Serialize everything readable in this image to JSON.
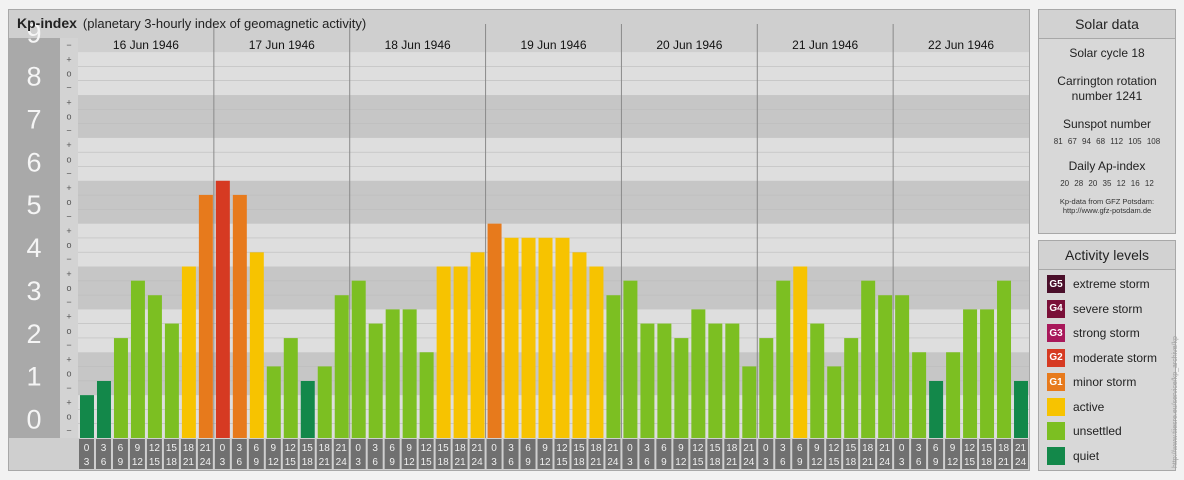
{
  "header": {
    "title": "Kp-index",
    "subtitle": "(planetary 3-hourly index of geomagnetic activity)"
  },
  "solar": {
    "title": "Solar data",
    "cycle": "Solar cycle 18",
    "carrington_line1": "Carrington rotation",
    "carrington_line2": "number 1241",
    "sunspot_label": "Sunspot number",
    "sunspot_values": "81 67 94 68 112 105 108",
    "ap_label": "Daily Ap-index",
    "ap_values": "20 28 20 35 12 16 12",
    "source_line1": "Kp-data from GFZ Potsdam:",
    "source_line2": "http://www.gfz-potsdam.de"
  },
  "activity": {
    "title": "Activity levels",
    "levels": [
      {
        "code": "G5",
        "label": "extreme storm",
        "color": "#4a0f2a"
      },
      {
        "code": "G4",
        "label": "severe storm",
        "color": "#7a1038"
      },
      {
        "code": "G3",
        "label": "strong storm",
        "color": "#a8185a"
      },
      {
        "code": "G2",
        "label": "moderate storm",
        "color": "#d63a22"
      },
      {
        "code": "G1",
        "label": "minor storm",
        "color": "#e77a1c"
      },
      {
        "code": "",
        "label": "active",
        "color": "#f7c300"
      },
      {
        "code": "",
        "label": "unsettled",
        "color": "#7cbf22"
      },
      {
        "code": "",
        "label": "quiet",
        "color": "#13884a"
      }
    ]
  },
  "credit": "http://www.tiiesre.eu/service/kp_archive/kp",
  "chart_data": {
    "type": "bar",
    "y_tick_labels": [
      "0",
      "1",
      "2",
      "3",
      "4",
      "5",
      "6",
      "7",
      "8",
      "9"
    ],
    "y_minor_labels": [
      "+",
      "o",
      "−"
    ],
    "ylim": [
      0,
      9.33
    ],
    "days": [
      "16 Jun 1946",
      "17 Jun 1946",
      "18 Jun 1946",
      "19 Jun 1946",
      "20 Jun 1946",
      "21 Jun 1946",
      "22 Jun 1946"
    ],
    "interval_starts": [
      "0",
      "3",
      "6",
      "9",
      "12",
      "15",
      "18",
      "21"
    ],
    "interval_ends": [
      "3",
      "6",
      "9",
      "12",
      "15",
      "18",
      "21",
      "24"
    ],
    "kp_values": [
      1.0,
      1.33,
      2.33,
      3.67,
      3.33,
      2.67,
      4.0,
      5.67,
      6.0,
      5.67,
      4.33,
      1.67,
      2.33,
      1.33,
      1.67,
      3.33,
      3.67,
      2.67,
      3.0,
      3.0,
      2.0,
      4.0,
      4.0,
      4.33,
      5.0,
      4.67,
      4.67,
      4.67,
      4.67,
      4.33,
      4.0,
      3.33,
      3.67,
      2.67,
      2.67,
      2.33,
      3.0,
      2.67,
      2.67,
      1.67,
      2.33,
      3.67,
      4.0,
      2.67,
      1.67,
      2.33,
      3.67,
      3.33,
      3.33,
      2.0,
      1.33,
      2.0,
      3.0,
      3.0,
      3.67,
      1.33
    ],
    "colors": {
      "quiet": "#13884a",
      "unsettled": "#7cbf22",
      "active": "#f7c300",
      "minor_storm": "#e77a1c",
      "moderate_storm": "#d63a22"
    }
  }
}
